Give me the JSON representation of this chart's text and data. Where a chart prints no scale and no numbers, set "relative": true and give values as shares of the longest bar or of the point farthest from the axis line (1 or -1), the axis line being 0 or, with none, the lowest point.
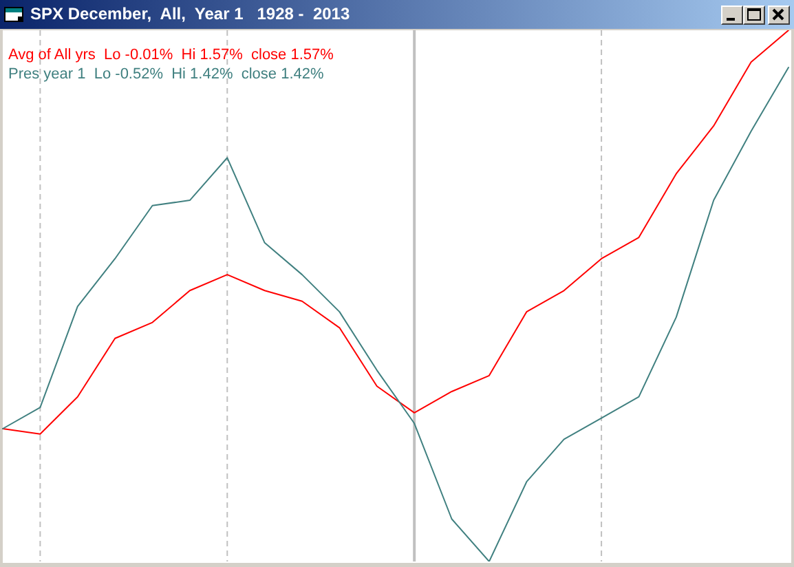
{
  "chart_data": {
    "type": "line",
    "title": "SPX December,  All,  Year 1   1928 -  2013",
    "relative": true,
    "categories": [
      null,
      null,
      null,
      null,
      null,
      null,
      null,
      null,
      null,
      null,
      null,
      null,
      null,
      null,
      null,
      null,
      null,
      null,
      null,
      null,
      null,
      null
    ],
    "series": [
      {
        "name": "Avg of All yrs  Lo -0.01%  Hi 1.57%  close 1.57%",
        "color": "#ff0000",
        "values": [
          0.25,
          0.24,
          0.31,
          0.42,
          0.45,
          0.51,
          0.54,
          0.51,
          0.49,
          0.44,
          0.33,
          0.28,
          0.32,
          0.35,
          0.47,
          0.51,
          0.57,
          0.61,
          0.73,
          0.82,
          0.94,
          1
        ]
      },
      {
        "name": "Pres year 1  Lo -0.52%  Hi 1.42%  close 1.42%",
        "color": "#408080",
        "values": [
          0.25,
          0.29,
          0.48,
          0.57,
          0.67,
          0.68,
          0.76,
          0.6,
          0.54,
          0.47,
          0.36,
          0.26,
          0.08,
          0,
          0.15,
          0.23,
          0.27,
          0.31,
          0.46,
          0.68,
          0.81,
          0.93
        ]
      }
    ],
    "grid": "x",
    "legend": "top left",
    "line_style": "solid"
  }
}
